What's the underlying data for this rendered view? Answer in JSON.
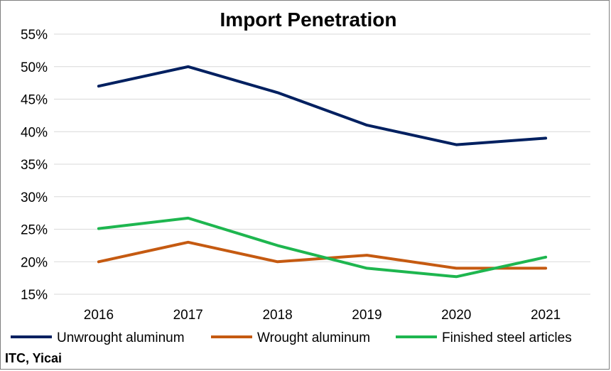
{
  "chart_data": {
    "type": "line",
    "title": "Import Penetration",
    "xlabel": "",
    "ylabel": "",
    "categories": [
      "2016",
      "2017",
      "2018",
      "2019",
      "2020",
      "2021"
    ],
    "ylim": [
      15,
      55
    ],
    "yticks": [
      15,
      20,
      25,
      30,
      35,
      40,
      45,
      50,
      55
    ],
    "ytick_labels": [
      "15%",
      "20%",
      "25%",
      "30%",
      "35%",
      "40%",
      "45%",
      "50%",
      "55%"
    ],
    "grid": true,
    "legend_position": "bottom",
    "series": [
      {
        "name": "Unwrought aluminum",
        "color": "#002060",
        "values": [
          47,
          50,
          46,
          41,
          38,
          39
        ]
      },
      {
        "name": "Wrought aluminum",
        "color": "#c55a11",
        "values": [
          20,
          23,
          20,
          21,
          19,
          19
        ]
      },
      {
        "name": "Finished steel articles",
        "color": "#1eb64f",
        "values": [
          25.1,
          26.7,
          22.5,
          19,
          17.7,
          20.7
        ]
      }
    ],
    "source": "ITC, Yicai"
  }
}
